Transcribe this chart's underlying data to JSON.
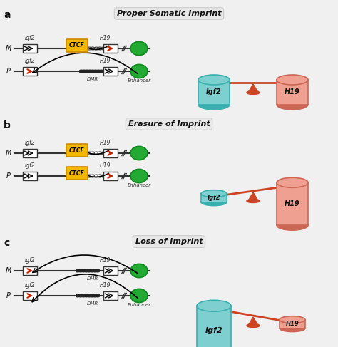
{
  "bg_color": "#f0f0f0",
  "panel_bg": "#f0f0f0",
  "titles": [
    "Proper Somatic Imprint",
    "Erasure of Imprint",
    "Loss of Imprint"
  ],
  "teal_color": "#7ecfcf",
  "salmon_color": "#f0a090",
  "pivot_color": "#cc4422",
  "bar_edge_teal": "#3aafaf",
  "bar_edge_salmon": "#cc6655",
  "scale_color": "#cc4422",
  "ctcf_color": "#f5b800",
  "ctcf_edge": "#cc8800",
  "gene_box_color": "#ffffff",
  "gene_box_edge": "#333333",
  "arrow_red": "#cc2200",
  "arrow_black": "#111111",
  "enhancer_color": "#22aa33",
  "dmr_dot_color": "#333333",
  "open_circle_color": "#ffffff",
  "open_circle_edge": "#333333"
}
